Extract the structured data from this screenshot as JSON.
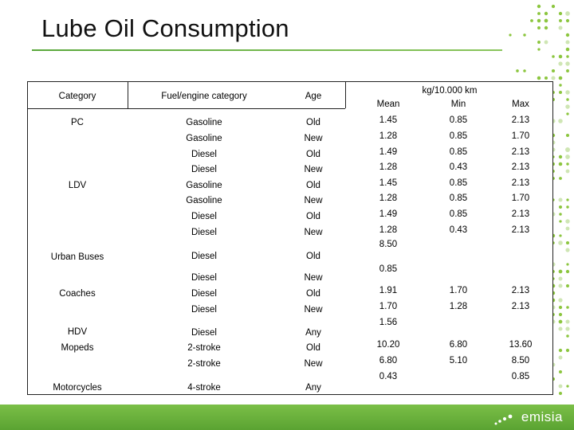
{
  "title": "Lube Oil Consumption",
  "brand": {
    "name": "emisia",
    "accent": "#6db33f"
  },
  "table": {
    "headers": {
      "category": "Category",
      "fuel": "Fuel/engine category",
      "age": "Age",
      "unit": "kg/10.000 km",
      "mean": "Mean",
      "min": "Min",
      "max": "Max"
    },
    "rows": [
      {
        "category": "PC",
        "fuel": "Gasoline",
        "age": "Old",
        "mean": "1.45",
        "min": "0.85",
        "max": "2.13"
      },
      {
        "category": "",
        "fuel": "Gasoline",
        "age": "New",
        "mean": "1.28",
        "min": "0.85",
        "max": "1.70"
      },
      {
        "category": "",
        "fuel": "Diesel",
        "age": "Old",
        "mean": "1.49",
        "min": "0.85",
        "max": "2.13"
      },
      {
        "category": "",
        "fuel": "Diesel",
        "age": "New",
        "mean": "1.28",
        "min": "0.43",
        "max": "2.13"
      },
      {
        "category": "LDV",
        "fuel": "Gasoline",
        "age": "Old",
        "mean": "1.45",
        "min": "0.85",
        "max": "2.13"
      },
      {
        "category": "",
        "fuel": "Gasoline",
        "age": "New",
        "mean": "1.28",
        "min": "0.85",
        "max": "1.70"
      },
      {
        "category": "",
        "fuel": "Diesel",
        "age": "Old",
        "mean": "1.49",
        "min": "0.85",
        "max": "2.13"
      },
      {
        "category": "",
        "fuel": "Diesel",
        "age": "New",
        "mean": "1.28",
        "min": "0.43",
        "max": "2.13"
      },
      {
        "category": "Urban Buses",
        "fuel": "Diesel",
        "age": "Old",
        "mean": "8.50",
        "min": "",
        "max": ""
      },
      {
        "category": "",
        "fuel": "Diesel",
        "age": "New",
        "mean": "0.85",
        "min": "",
        "max": ""
      },
      {
        "category": "Coaches",
        "fuel": "Diesel",
        "age": "Old",
        "mean": "1.91",
        "min": "1.70",
        "max": "2.13"
      },
      {
        "category": "",
        "fuel": "Diesel",
        "age": "New",
        "mean": "1.70",
        "min": "1.28",
        "max": "2.13"
      },
      {
        "category": "HDV",
        "fuel": "Diesel",
        "age": "Any",
        "mean": "1.56",
        "min": "",
        "max": ""
      },
      {
        "category": "Mopeds",
        "fuel": "2-stroke",
        "age": "Old",
        "mean": "10.20",
        "min": "6.80",
        "max": "13.60"
      },
      {
        "category": "",
        "fuel": "2-stroke",
        "age": "New",
        "mean": "6.80",
        "min": "5.10",
        "max": "8.50"
      },
      {
        "category": "Motorcycles",
        "fuel": "4-stroke",
        "age": "Any",
        "mean": "0.43",
        "min": "",
        "max": "0.85"
      }
    ]
  }
}
